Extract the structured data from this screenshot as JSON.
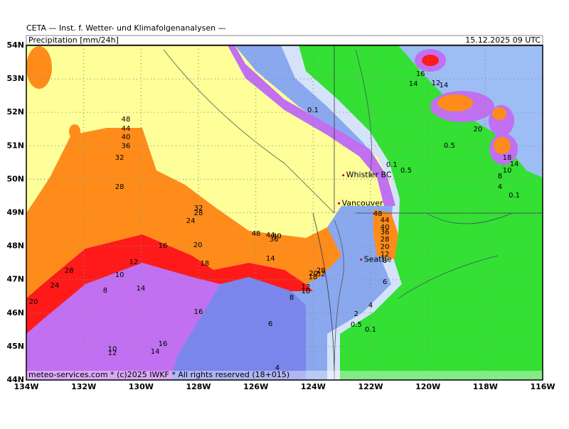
{
  "header": {
    "title": "CETA — Inst. f. Wetter- und Klimafolgenanalysen —",
    "subtitle": "Precipitation [mm/24h]",
    "valid_time": "15.12.2025 09 UTC"
  },
  "footer": "meteo-services.com * (c)2025 IWKF * All rights reserved (18+015)",
  "map": {
    "lon_range": [
      -134,
      -116
    ],
    "lat_range": [
      44,
      54
    ],
    "lon_ticks": [
      {
        "value": -134,
        "label": "134W"
      },
      {
        "value": -132,
        "label": "132W"
      },
      {
        "value": -130,
        "label": "130W"
      },
      {
        "value": -128,
        "label": "128W"
      },
      {
        "value": -126,
        "label": "126W"
      },
      {
        "value": -124,
        "label": "124W"
      },
      {
        "value": -122,
        "label": "122W"
      },
      {
        "value": -120,
        "label": "120W"
      },
      {
        "value": -118,
        "label": "118W"
      },
      {
        "value": -116,
        "label": "116W"
      }
    ],
    "lat_ticks": [
      {
        "value": 54,
        "label": "54N"
      },
      {
        "value": 53,
        "label": "53N"
      },
      {
        "value": 52,
        "label": "52N"
      },
      {
        "value": 51,
        "label": "51N"
      },
      {
        "value": 50,
        "label": "50N"
      },
      {
        "value": 49,
        "label": "49N"
      },
      {
        "value": 48,
        "label": "48N"
      },
      {
        "value": 47,
        "label": "47N"
      },
      {
        "value": 46,
        "label": "46N"
      },
      {
        "value": 45,
        "label": "45N"
      },
      {
        "value": 44,
        "label": "44N"
      }
    ],
    "cities": [
      {
        "name": "Whistler BC",
        "lon": -122.95,
        "lat": 50.12
      },
      {
        "name": "Vancouver",
        "lon": -123.1,
        "lat": 49.28
      },
      {
        "name": "Seattle",
        "lon": -122.33,
        "lat": 47.6
      }
    ],
    "contour_labels": [
      {
        "value": 48,
        "lon": -130.53,
        "lat": 51.79
      },
      {
        "value": 44,
        "lon": -130.53,
        "lat": 51.52
      },
      {
        "value": 40,
        "lon": -130.53,
        "lat": 51.26
      },
      {
        "value": 36,
        "lon": -130.53,
        "lat": 51.0
      },
      {
        "value": 32,
        "lon": -130.75,
        "lat": 50.65
      },
      {
        "value": 28,
        "lon": -130.75,
        "lat": 49.77
      },
      {
        "value": 32,
        "lon": -128.0,
        "lat": 49.14
      },
      {
        "value": 28,
        "lon": -128.0,
        "lat": 48.99
      },
      {
        "value": 24,
        "lon": -128.27,
        "lat": 48.76
      },
      {
        "value": 20,
        "lon": -128.02,
        "lat": 48.03
      },
      {
        "value": 18,
        "lon": -127.78,
        "lat": 47.48
      },
      {
        "value": 16,
        "lon": -129.24,
        "lat": 48.01
      },
      {
        "value": 12,
        "lon": -130.26,
        "lat": 47.52
      },
      {
        "value": 10,
        "lon": -130.75,
        "lat": 47.14
      },
      {
        "value": 8,
        "lon": -131.25,
        "lat": 46.68
      },
      {
        "value": 14,
        "lon": -130.01,
        "lat": 46.74
      },
      {
        "value": 28,
        "lon": -132.51,
        "lat": 47.27
      },
      {
        "value": 24,
        "lon": -133.01,
        "lat": 46.82
      },
      {
        "value": 20,
        "lon": -133.75,
        "lat": 46.34
      },
      {
        "value": 16,
        "lon": -128.0,
        "lat": 46.04
      },
      {
        "value": 16,
        "lon": -129.24,
        "lat": 45.08
      },
      {
        "value": 14,
        "lon": -129.51,
        "lat": 44.85
      },
      {
        "value": 10,
        "lon": -131.0,
        "lat": 44.92
      },
      {
        "value": 12,
        "lon": -131.0,
        "lat": 44.81
      },
      {
        "value": 48,
        "lon": -125.99,
        "lat": 48.37
      },
      {
        "value": 44,
        "lon": -125.49,
        "lat": 48.33
      },
      {
        "value": 40,
        "lon": -125.26,
        "lat": 48.3
      },
      {
        "value": 36,
        "lon": -125.37,
        "lat": 48.2
      },
      {
        "value": 14,
        "lon": -125.49,
        "lat": 47.63
      },
      {
        "value": 8,
        "lon": -124.75,
        "lat": 46.46
      },
      {
        "value": 6,
        "lon": -125.49,
        "lat": 45.68
      },
      {
        "value": 4,
        "lon": -125.25,
        "lat": 44.36
      },
      {
        "value": 10,
        "lon": -124.26,
        "lat": 46.65
      },
      {
        "value": 12,
        "lon": -124.26,
        "lat": 46.78
      },
      {
        "value": 18,
        "lon": -124.01,
        "lat": 47.08
      },
      {
        "value": 20,
        "lon": -123.99,
        "lat": 47.18
      },
      {
        "value": 28,
        "lon": -123.73,
        "lat": 47.27
      },
      {
        "value": 32,
        "lon": -123.73,
        "lat": 47.16
      },
      {
        "value": 0.1,
        "lon": -124.01,
        "lat": 52.07
      },
      {
        "value": 0.1,
        "lon": -121.26,
        "lat": 50.43
      },
      {
        "value": 0.5,
        "lon": -120.76,
        "lat": 50.26
      },
      {
        "value": 48,
        "lon": -121.75,
        "lat": 48.97
      },
      {
        "value": 44,
        "lon": -121.5,
        "lat": 48.78
      },
      {
        "value": 40,
        "lon": -121.5,
        "lat": 48.56
      },
      {
        "value": 36,
        "lon": -121.5,
        "lat": 48.42
      },
      {
        "value": 28,
        "lon": -121.5,
        "lat": 48.2
      },
      {
        "value": 20,
        "lon": -121.5,
        "lat": 47.98
      },
      {
        "value": 12,
        "lon": -121.5,
        "lat": 47.76
      },
      {
        "value": 8,
        "lon": -121.5,
        "lat": 47.57
      },
      {
        "value": 6,
        "lon": -121.5,
        "lat": 46.93
      },
      {
        "value": 4,
        "lon": -122.0,
        "lat": 46.23
      },
      {
        "value": 2,
        "lon": -122.5,
        "lat": 45.97
      },
      {
        "value": 0.5,
        "lon": -122.5,
        "lat": 45.66
      },
      {
        "value": 0.1,
        "lon": -122.0,
        "lat": 45.51
      },
      {
        "value": 16,
        "lon": -120.26,
        "lat": 53.15
      },
      {
        "value": 14,
        "lon": -120.51,
        "lat": 52.85
      },
      {
        "value": 12,
        "lon": -119.72,
        "lat": 52.87
      },
      {
        "value": 14,
        "lon": -119.45,
        "lat": 52.81
      },
      {
        "value": 20,
        "lon": -118.26,
        "lat": 51.49
      },
      {
        "value": 0.5,
        "lon": -119.25,
        "lat": 51.01
      },
      {
        "value": 18,
        "lon": -117.24,
        "lat": 50.65
      },
      {
        "value": 10,
        "lon": -117.24,
        "lat": 50.26
      },
      {
        "value": 14,
        "lon": -116.99,
        "lat": 50.45
      },
      {
        "value": 8,
        "lon": -117.49,
        "lat": 50.09
      },
      {
        "value": 4,
        "lon": -117.49,
        "lat": 49.77
      },
      {
        "value": 0.1,
        "lon": -116.99,
        "lat": 49.52
      }
    ]
  }
}
